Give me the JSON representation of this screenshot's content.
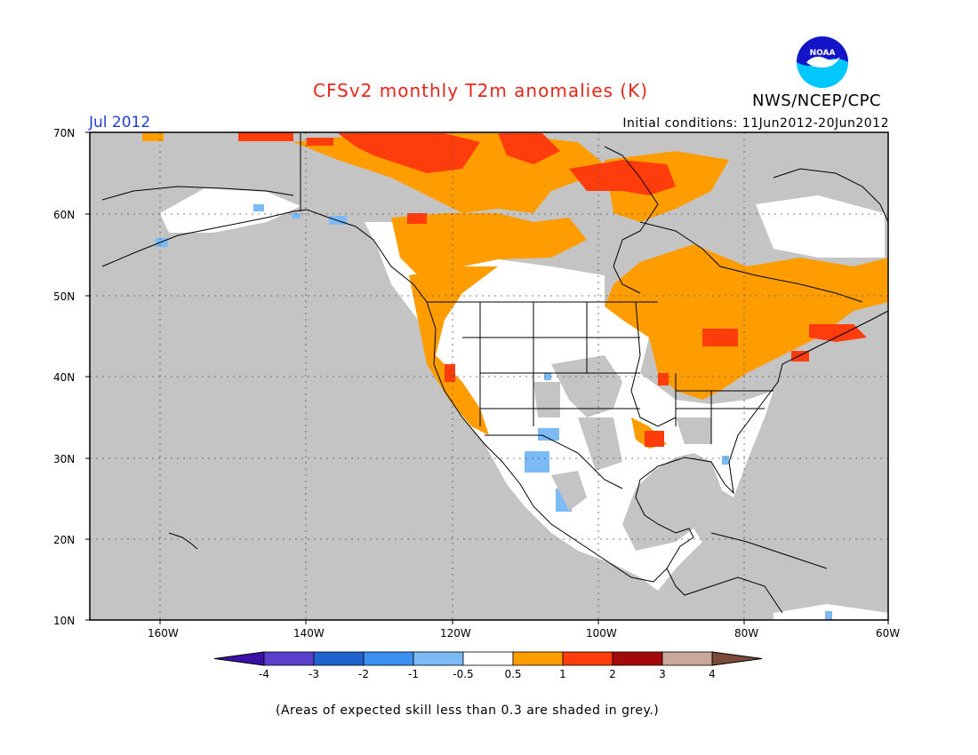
{
  "title": "CFSv2 monthly T2m anomalies (K)",
  "organization": "NWS/NCEP/CPC",
  "logo_text": "NOAA",
  "period": "Jul 2012",
  "initial_conditions": "Initial conditions: 11Jun2012-20Jun2012",
  "footnote": "(Areas of expected skill less than 0.3 are shaded in grey.)",
  "map": {
    "lat_labels": [
      "70N",
      "60N",
      "50N",
      "40N",
      "30N",
      "20N",
      "10N"
    ],
    "lon_labels": [
      "160W",
      "140W",
      "120W",
      "100W",
      "80W",
      "60W"
    ],
    "extent": {
      "lon_min": -172,
      "lon_max": -60,
      "lat_min": 10,
      "lat_max": 70
    }
  },
  "colorbar": {
    "ticks": [
      "-4",
      "-3",
      "-2",
      "-1",
      "-0.5",
      "0.5",
      "1",
      "2",
      "3",
      "4"
    ],
    "colors": [
      "#3b10a8",
      "#5a3fcf",
      "#1f63d1",
      "#3b8ff0",
      "#7cbaf5",
      "#ffffff",
      "#ff9d00",
      "#ff3c0c",
      "#a40a0a",
      "#c9a89a",
      "#7a4a3a"
    ],
    "low_end_color": "#3b10a8",
    "high_end_color": "#7a4a3a"
  },
  "colors": {
    "low_skill": "#c4c4c4",
    "anomaly_05_1": "#ff9d00",
    "anomaly_1_2": "#ff3c0c",
    "anomaly_neg": "#7cbaf5",
    "coast": "#000000"
  }
}
